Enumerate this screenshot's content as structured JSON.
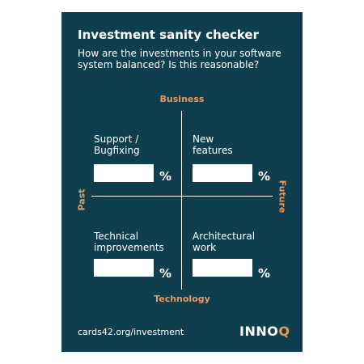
{
  "card": {
    "title": "Investment sanity checker",
    "subtitle": "How are the investments in your software system balanced? Is this reasonable?",
    "background_color": "#0f3e4e",
    "accent_color": "#e8985e"
  },
  "axes": {
    "top": "Business",
    "bottom": "Technology",
    "left": "Past",
    "right": "Future"
  },
  "quadrants": [
    {
      "label": "Support /\nBugfixing",
      "value": "",
      "unit": "%"
    },
    {
      "label": "New\nfeatures",
      "value": "",
      "unit": "%"
    },
    {
      "label": "Technical\nimprovements",
      "value": "",
      "unit": "%"
    },
    {
      "label": "Architectural\nwork",
      "value": "",
      "unit": "%"
    }
  ],
  "footer": {
    "url": "cards42.org/investment",
    "logo_main": "INNO",
    "logo_accent": "Q"
  }
}
